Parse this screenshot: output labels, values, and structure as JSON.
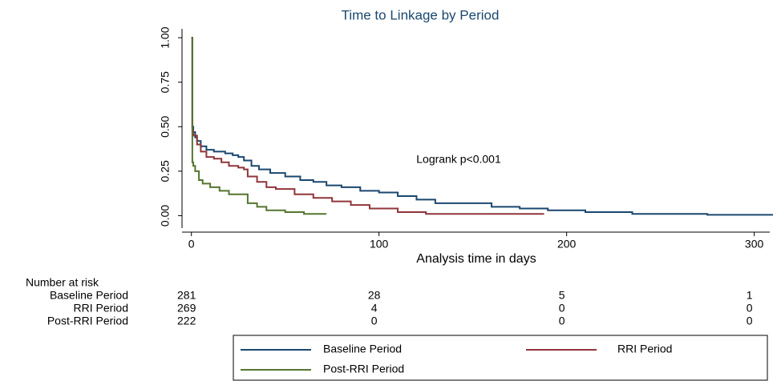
{
  "chart_data": {
    "type": "km",
    "title": "Time to Linkage by Period",
    "x_label": "Analysis time in days",
    "annotation": "Logrank p<0.001",
    "xlim": [
      -5,
      310
    ],
    "ylim": [
      -0.07,
      1.05
    ],
    "xticks": [
      0,
      100,
      200,
      300
    ],
    "yticks": [
      {
        "value": 0,
        "label": "0.00"
      },
      {
        "value": 0.25,
        "label": "0.25"
      },
      {
        "value": 0.5,
        "label": "0.50"
      },
      {
        "value": 0.75,
        "label": "0.75"
      },
      {
        "value": 1,
        "label": "1.00"
      }
    ],
    "series": [
      {
        "name": "Baseline Period",
        "color": "#1a476f",
        "x": [
          0,
          0.5,
          1,
          2,
          3,
          5,
          8,
          12,
          18,
          22,
          25,
          28,
          32,
          36,
          42,
          50,
          58,
          65,
          72,
          80,
          90,
          100,
          110,
          120,
          130,
          145,
          160,
          175,
          190,
          210,
          235,
          275,
          310
        ],
        "values": [
          1,
          0.5,
          0.47,
          0.44,
          0.42,
          0.39,
          0.37,
          0.36,
          0.35,
          0.34,
          0.33,
          0.31,
          0.28,
          0.26,
          0.24,
          0.22,
          0.2,
          0.19,
          0.17,
          0.16,
          0.14,
          0.13,
          0.11,
          0.09,
          0.07,
          0.07,
          0.05,
          0.04,
          0.03,
          0.02,
          0.01,
          0.005,
          0.005
        ]
      },
      {
        "name": "RRI Period",
        "color": "#90353b",
        "x": [
          0,
          0.5,
          1,
          3,
          5,
          8,
          12,
          16,
          20,
          25,
          28,
          30,
          35,
          40,
          45,
          55,
          65,
          75,
          85,
          95,
          110,
          125,
          150,
          188
        ],
        "values": [
          1,
          0.48,
          0.45,
          0.4,
          0.36,
          0.33,
          0.32,
          0.3,
          0.28,
          0.27,
          0.26,
          0.22,
          0.19,
          0.16,
          0.15,
          0.12,
          0.1,
          0.08,
          0.06,
          0.04,
          0.02,
          0.01,
          0.01,
          0.01
        ]
      },
      {
        "name": "Post-RRI Period",
        "color": "#55752f",
        "x": [
          0,
          0.5,
          1,
          2,
          4,
          6,
          10,
          15,
          20,
          25,
          30,
          35,
          40,
          50,
          60,
          72
        ],
        "values": [
          1,
          0.3,
          0.28,
          0.25,
          0.2,
          0.18,
          0.16,
          0.14,
          0.12,
          0.12,
          0.07,
          0.05,
          0.03,
          0.02,
          0.01,
          0.01
        ]
      }
    ],
    "risk_table": {
      "title": "Number at risk",
      "rows": [
        {
          "name": "Baseline Period",
          "counts": [
            281,
            28,
            5,
            1
          ]
        },
        {
          "name": "RRI Period",
          "counts": [
            269,
            4,
            0,
            0
          ]
        },
        {
          "name": "Post-RRI Period",
          "counts": [
            222,
            0,
            0,
            0
          ]
        }
      ]
    }
  }
}
